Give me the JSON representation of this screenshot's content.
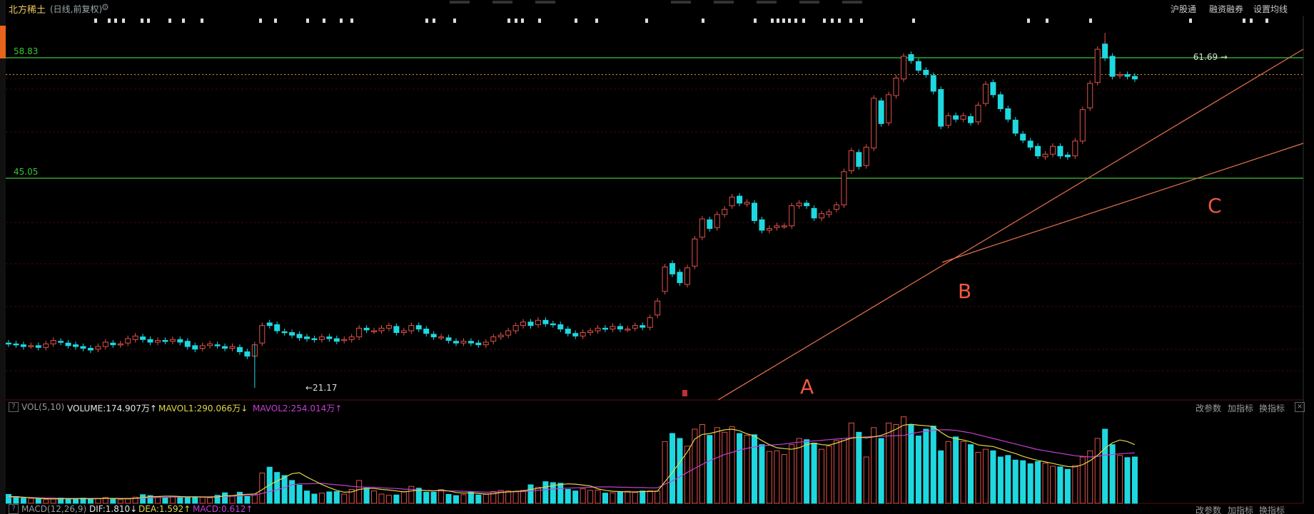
{
  "header": {
    "title": "北方稀土",
    "subtitle": "(日线,前复权)",
    "links": [
      "沪股通",
      "融资融券",
      "设置均线"
    ]
  },
  "chart_data": {
    "type": "candlestick",
    "levels": [
      {
        "label": "58.83",
        "value": 58.83,
        "color": "#33c833"
      },
      {
        "label": "45.05",
        "value": 45.05,
        "color": "#33c833"
      }
    ],
    "dotted_level": {
      "value": 56.9,
      "color": "#d9a23a"
    },
    "annotations": {
      "high_label": "61.69 →",
      "low_label": "←21.17",
      "points": [
        "A",
        "B",
        "C"
      ]
    },
    "candles": [
      [
        26.2,
        26.1
      ],
      [
        26.1,
        26.0
      ],
      [
        26.0,
        25.8
      ],
      [
        25.9,
        25.9
      ],
      [
        25.9,
        25.7
      ],
      [
        25.7,
        26.1
      ],
      [
        26.1,
        26.5
      ],
      [
        26.4,
        26.3
      ],
      [
        26.2,
        25.9
      ],
      [
        26.0,
        25.8
      ],
      [
        25.8,
        25.6
      ],
      [
        25.6,
        25.4
      ],
      [
        25.5,
        25.8
      ],
      [
        25.8,
        26.3
      ],
      [
        26.2,
        26.0
      ],
      [
        26.0,
        26.1
      ],
      [
        26.2,
        26.7
      ],
      [
        26.6,
        27.0
      ],
      [
        26.9,
        26.6
      ],
      [
        26.6,
        26.3
      ],
      [
        26.3,
        26.5
      ],
      [
        26.5,
        26.4
      ],
      [
        26.4,
        26.6
      ],
      [
        26.6,
        26.3
      ],
      [
        26.4,
        25.8
      ],
      [
        25.9,
        25.5
      ],
      [
        25.6,
        25.9
      ],
      [
        25.9,
        26.1
      ],
      [
        26.0,
        25.9
      ],
      [
        25.8,
        25.6
      ],
      [
        25.6,
        25.8
      ],
      [
        25.7,
        25.2
      ],
      [
        25.2,
        24.7
      ],
      [
        24.7,
        26.0
      ],
      [
        26.2,
        28.2
      ],
      [
        28.5,
        28.2
      ],
      [
        28.3,
        27.6
      ],
      [
        27.5,
        27.4
      ],
      [
        27.4,
        27.1
      ],
      [
        27.2,
        26.8
      ],
      [
        26.9,
        26.7
      ],
      [
        26.7,
        26.6
      ],
      [
        26.6,
        26.9
      ],
      [
        26.9,
        26.7
      ],
      [
        26.7,
        26.4
      ],
      [
        26.5,
        26.6
      ],
      [
        26.6,
        26.9
      ],
      [
        26.9,
        27.9
      ],
      [
        27.9,
        27.7
      ],
      [
        27.6,
        27.6
      ],
      [
        27.6,
        27.9
      ],
      [
        27.9,
        28.2
      ],
      [
        28.1,
        27.4
      ],
      [
        27.4,
        27.6
      ],
      [
        27.6,
        28.2
      ],
      [
        28.2,
        27.8
      ],
      [
        27.8,
        27.3
      ],
      [
        27.2,
        26.9
      ],
      [
        26.9,
        26.9
      ],
      [
        26.8,
        26.5
      ],
      [
        26.4,
        26.2
      ],
      [
        26.2,
        26.4
      ],
      [
        26.4,
        26.2
      ],
      [
        26.2,
        26.0
      ],
      [
        26.0,
        26.3
      ],
      [
        26.4,
        26.9
      ],
      [
        26.9,
        27.1
      ],
      [
        27.1,
        27.6
      ],
      [
        27.6,
        28.2
      ],
      [
        28.2,
        28.6
      ],
      [
        28.6,
        28.2
      ],
      [
        28.3,
        28.8
      ],
      [
        28.8,
        28.4
      ],
      [
        28.4,
        28.3
      ],
      [
        28.3,
        27.8
      ],
      [
        27.8,
        27.3
      ],
      [
        27.3,
        27.0
      ],
      [
        27.0,
        27.4
      ],
      [
        27.4,
        27.6
      ],
      [
        27.6,
        27.9
      ],
      [
        27.9,
        27.8
      ],
      [
        27.8,
        28.1
      ],
      [
        28.1,
        27.8
      ],
      [
        27.8,
        27.8
      ],
      [
        27.9,
        28.2
      ],
      [
        28.2,
        28.0
      ],
      [
        28.0,
        29.1
      ],
      [
        29.4,
        31.0
      ],
      [
        32.1,
        34.9
      ],
      [
        35.3,
        34.1
      ],
      [
        34.3,
        33.1
      ],
      [
        32.9,
        34.8
      ],
      [
        35.0,
        38.1
      ],
      [
        38.3,
        40.4
      ],
      [
        40.3,
        39.3
      ],
      [
        39.4,
        40.9
      ],
      [
        40.9,
        41.5
      ],
      [
        41.9,
        42.9
      ],
      [
        43.0,
        42.2
      ],
      [
        42.1,
        42.3
      ],
      [
        42.2,
        40.2
      ],
      [
        40.3,
        39.1
      ],
      [
        39.1,
        39.3
      ],
      [
        39.4,
        39.6
      ],
      [
        39.6,
        39.6
      ],
      [
        39.6,
        41.9
      ],
      [
        41.9,
        42.2
      ],
      [
        42.2,
        41.9
      ],
      [
        41.6,
        40.5
      ],
      [
        40.5,
        41.0
      ],
      [
        40.9,
        41.2
      ],
      [
        41.5,
        42.0
      ],
      [
        42.0,
        45.8
      ],
      [
        45.9,
        48.2
      ],
      [
        48.0,
        46.4
      ],
      [
        46.5,
        48.6
      ],
      [
        48.5,
        54.2
      ],
      [
        53.9,
        51.3
      ],
      [
        51.4,
        54.6
      ],
      [
        54.5,
        56.5
      ],
      [
        56.4,
        59.0
      ],
      [
        59.2,
        58.5
      ],
      [
        58.4,
        57.4
      ],
      [
        57.4,
        56.9
      ],
      [
        56.8,
        55.0
      ],
      [
        55.2,
        51.0
      ],
      [
        51.1,
        52.2
      ],
      [
        52.2,
        51.8
      ],
      [
        51.8,
        52.2
      ],
      [
        52.1,
        51.4
      ],
      [
        51.5,
        53.4
      ],
      [
        53.6,
        55.8
      ],
      [
        56.0,
        54.6
      ],
      [
        54.6,
        53.0
      ],
      [
        53.0,
        51.8
      ],
      [
        51.7,
        50.2
      ],
      [
        50.1,
        49.4
      ],
      [
        49.3,
        48.6
      ],
      [
        48.7,
        47.6
      ],
      [
        47.5,
        47.8
      ],
      [
        47.8,
        48.7
      ],
      [
        48.7,
        47.6
      ],
      [
        47.7,
        47.5
      ],
      [
        47.6,
        49.3
      ],
      [
        49.3,
        52.9
      ],
      [
        53.1,
        55.9
      ],
      [
        56.0,
        59.8
      ],
      [
        60.4,
        58.8
      ],
      [
        59.0,
        56.7
      ],
      [
        56.8,
        56.9
      ],
      [
        56.9,
        56.7
      ],
      [
        56.7,
        56.4
      ]
    ],
    "volumes": [
      29,
      22,
      19,
      16,
      14,
      12,
      14,
      17,
      14,
      15,
      17,
      13,
      15,
      19,
      15,
      12,
      14,
      20,
      28,
      25,
      21,
      19,
      23,
      21,
      20,
      19,
      20,
      18,
      26,
      34,
      25,
      36,
      22,
      30,
      98,
      117,
      100,
      90,
      74,
      59,
      40,
      30,
      33,
      37,
      38,
      30,
      45,
      74,
      49,
      40,
      30,
      26,
      27,
      38,
      55,
      49,
      36,
      36,
      44,
      29,
      25,
      28,
      36,
      27,
      29,
      38,
      42,
      40,
      37,
      42,
      60,
      52,
      70,
      67,
      65,
      45,
      40,
      47,
      42,
      43,
      33,
      34,
      37,
      39,
      35,
      40,
      41,
      40,
      200,
      226,
      210,
      185,
      240,
      255,
      220,
      245,
      230,
      248,
      226,
      220,
      222,
      190,
      168,
      170,
      158,
      190,
      210,
      206,
      195,
      175,
      185,
      203,
      210,
      260,
      230,
      150,
      245,
      210,
      260,
      255,
      280,
      255,
      218,
      240,
      250,
      170,
      200,
      215,
      200,
      190,
      165,
      175,
      170,
      150,
      155,
      140,
      138,
      128,
      135,
      130,
      120,
      118,
      110,
      122,
      150,
      170,
      210,
      240,
      190,
      155,
      148,
      150
    ],
    "mavol1": [
      22,
      21,
      20,
      18,
      16,
      15,
      14,
      15,
      15,
      15,
      15,
      15,
      15,
      16,
      16,
      15,
      15,
      16,
      19,
      21,
      22,
      23,
      23,
      22,
      21,
      21,
      20,
      20,
      21,
      24,
      25,
      28,
      29,
      30,
      44,
      60,
      72,
      84,
      96,
      99,
      85,
      73,
      61,
      51,
      42,
      36,
      37,
      45,
      48,
      48,
      45,
      43,
      40,
      37,
      40,
      43,
      41,
      40,
      43,
      40,
      35,
      33,
      34,
      32,
      30,
      31,
      35,
      37,
      39,
      40,
      45,
      48,
      53,
      57,
      61,
      63,
      62,
      59,
      56,
      47,
      42,
      39,
      38,
      37,
      37,
      38,
      38,
      39,
      70,
      100,
      133,
      166,
      208,
      223,
      226,
      232,
      238,
      240,
      235,
      225,
      218,
      203,
      190,
      180,
      177,
      175,
      180,
      190,
      195,
      190,
      188,
      195,
      203,
      211,
      214,
      212,
      215,
      220,
      229,
      240,
      253,
      256,
      253,
      251,
      248,
      230,
      215,
      209,
      205,
      199,
      189,
      186,
      184,
      176,
      168,
      161,
      152,
      145,
      139,
      134,
      129,
      124,
      119,
      118,
      125,
      138,
      155,
      178,
      196,
      205,
      200,
      190
    ],
    "mavol2": [
      20,
      20,
      19,
      19,
      18,
      17,
      17,
      16,
      16,
      16,
      16,
      16,
      16,
      16,
      16,
      16,
      16,
      16,
      17,
      18,
      19,
      19,
      20,
      20,
      20,
      21,
      21,
      21,
      22,
      22,
      23,
      24,
      25,
      26,
      32,
      38,
      44,
      51,
      60,
      63,
      63,
      64,
      65,
      62,
      60,
      58,
      55,
      53,
      52,
      52,
      50,
      49,
      48,
      46,
      45,
      43,
      42,
      41,
      40,
      40,
      40,
      39,
      38,
      37,
      36,
      36,
      37,
      37,
      38,
      38,
      40,
      42,
      44,
      46,
      48,
      49,
      50,
      51,
      52,
      53,
      53,
      53,
      52,
      52,
      51,
      51,
      50,
      50,
      62,
      72,
      86,
      100,
      113,
      126,
      138,
      148,
      158,
      165,
      172,
      178,
      182,
      186,
      188,
      190,
      192,
      195,
      198,
      200,
      202,
      204,
      206,
      208,
      210,
      212,
      214,
      215,
      216,
      217,
      218,
      219,
      220,
      225,
      230,
      233,
      236,
      238,
      238,
      236,
      232,
      228,
      222,
      216,
      210,
      204,
      198,
      192,
      186,
      180,
      174,
      170,
      166,
      162,
      158,
      154,
      152,
      150,
      152,
      156,
      158,
      160,
      162,
      163
    ]
  },
  "volume_panel": {
    "label": "VOL(5,10)",
    "volume": "VOLUME:174.907万↑",
    "mavol1": "MAVOL1:290.066万↓",
    "mavol2": "MAVOL2:254.014万↑",
    "buttons": [
      "改参数",
      "加指标",
      "换指标"
    ]
  },
  "macd_panel": {
    "label": "MACD(12,26,9)",
    "dif": "DIF:1.810↓",
    "dea": "DEA:1.592↑",
    "macd": "MACD:0.612↑",
    "buttons": [
      "改参数",
      "加指标",
      "换指标"
    ]
  },
  "colors": {
    "up": "#e0524a",
    "down": "#1ed8e0",
    "mavol1": "#e0d848",
    "mavol2": "#c53fd3",
    "trendline": "#e8744a",
    "grid": "#3a0a0a"
  }
}
